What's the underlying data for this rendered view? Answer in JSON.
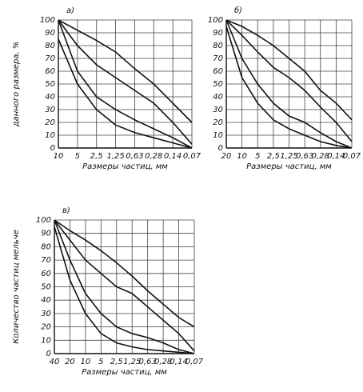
{
  "chart_data": [
    {
      "type": "line",
      "title": "а)",
      "ylabel": "данного размера, %",
      "xlabel": "Размеры частиц, мм",
      "categories": [
        "10",
        "5",
        "2,5",
        "1,25",
        "0,63",
        "0,28",
        "0,14",
        "0,07"
      ],
      "ylim": [
        0,
        100
      ],
      "yticks": [
        0,
        10,
        20,
        30,
        40,
        50,
        60,
        70,
        80,
        90,
        100
      ],
      "grid": true,
      "series": [
        {
          "color": "#111111",
          "values": [
            100,
            92,
            84,
            75,
            62,
            50,
            35,
            20
          ]
        },
        {
          "color": "#111111",
          "values": [
            100,
            80,
            65,
            55,
            45,
            35,
            20,
            3
          ]
        },
        {
          "color": "#111111",
          "values": [
            100,
            60,
            40,
            30,
            22,
            15,
            8,
            0
          ]
        },
        {
          "color": "#111111",
          "values": [
            85,
            50,
            30,
            18,
            12,
            8,
            4,
            0
          ]
        }
      ]
    },
    {
      "type": "line",
      "title": "б)",
      "xlabel": "Размеры частиц, мм",
      "categories": [
        "20",
        "10",
        "5",
        "2,5",
        "1,25",
        "0,63",
        "0,28",
        "0,14",
        "0,07"
      ],
      "ylim": [
        0,
        100
      ],
      "yticks": [
        0,
        10,
        20,
        30,
        40,
        50,
        60,
        70,
        80,
        90,
        100
      ],
      "grid": true,
      "series": [
        {
          "color": "#111111",
          "values": [
            100,
            95,
            88,
            80,
            70,
            60,
            45,
            35,
            22
          ]
        },
        {
          "color": "#111111",
          "values": [
            100,
            88,
            75,
            63,
            55,
            45,
            32,
            20,
            5
          ]
        },
        {
          "color": "#111111",
          "values": [
            100,
            70,
            50,
            35,
            25,
            20,
            12,
            5,
            0
          ]
        },
        {
          "color": "#111111",
          "values": [
            95,
            55,
            35,
            22,
            15,
            10,
            5,
            2,
            0
          ]
        }
      ]
    },
    {
      "type": "line",
      "title": "в)",
      "ylabel": "Количество частиц мельче",
      "xlabel": "Размеры частиц, мм",
      "categories": [
        "40",
        "20",
        "10",
        "5",
        "2,5",
        "1,25",
        "0,63",
        "0,28",
        "0,14",
        "0,07"
      ],
      "ylim": [
        0,
        100
      ],
      "yticks": [
        0,
        10,
        20,
        30,
        40,
        50,
        60,
        70,
        80,
        90,
        100
      ],
      "grid": true,
      "series": [
        {
          "color": "#111111",
          "values": [
            100,
            92,
            85,
            77,
            68,
            58,
            47,
            37,
            27,
            20
          ]
        },
        {
          "color": "#111111",
          "values": [
            100,
            85,
            70,
            60,
            50,
            45,
            35,
            25,
            15,
            2
          ]
        },
        {
          "color": "#111111",
          "values": [
            100,
            70,
            45,
            30,
            20,
            15,
            12,
            8,
            3,
            0
          ]
        },
        {
          "color": "#111111",
          "values": [
            95,
            55,
            30,
            15,
            8,
            5,
            3,
            2,
            1,
            0
          ]
        }
      ]
    }
  ]
}
